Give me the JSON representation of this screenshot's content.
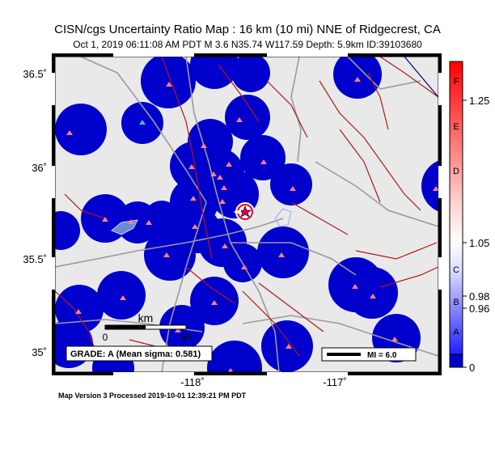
{
  "header": {
    "title": "CISN/cgs Uncertainty Ratio Map : 16 km (10 mi) NNE of Ridgecrest, CA",
    "subtitle": "Oct  1, 2019 06:11:08 AM PDT   M 3.6   N35.74 W117.59   Depth: 5.9km   ID:39103680"
  },
  "map": {
    "lat_ticks": [
      {
        "value": 36.5,
        "label": "36.5˚"
      },
      {
        "value": 36.0,
        "label": "36˚"
      },
      {
        "value": 35.5,
        "label": "35.5˚"
      },
      {
        "value": 35.0,
        "label": "35˚"
      }
    ],
    "lon_ticks": [
      {
        "value": -118,
        "label": "-118˚"
      },
      {
        "value": -117,
        "label": "-117˚"
      }
    ],
    "scale_bar": {
      "unit": "km",
      "start": "0",
      "end": "50"
    },
    "grade_box": "GRADE: A (Mean sigma: 0.581)",
    "mi_legend": "MI = 6.0",
    "colors": {
      "coverage": "#0000cc",
      "background": "#e9e9e9",
      "faults": "#b01818",
      "roads": "#9a9a9a",
      "stations": "#ff8080",
      "epicenter": "#ff0000"
    }
  },
  "colorbar": {
    "letters": [
      "F",
      "E",
      "D",
      "C",
      "B",
      "A"
    ],
    "values": [
      {
        "value": 1.25,
        "label": "1.25"
      },
      {
        "value": 1.05,
        "label": "1.05"
      },
      {
        "value": 0.98,
        "label": "0.98"
      },
      {
        "value": 0.96,
        "label": "0.96"
      },
      {
        "value": 0,
        "label": "0"
      }
    ]
  },
  "footer": "Map Version 3 Processed 2019-10-01 12:39:21 PM PDT"
}
